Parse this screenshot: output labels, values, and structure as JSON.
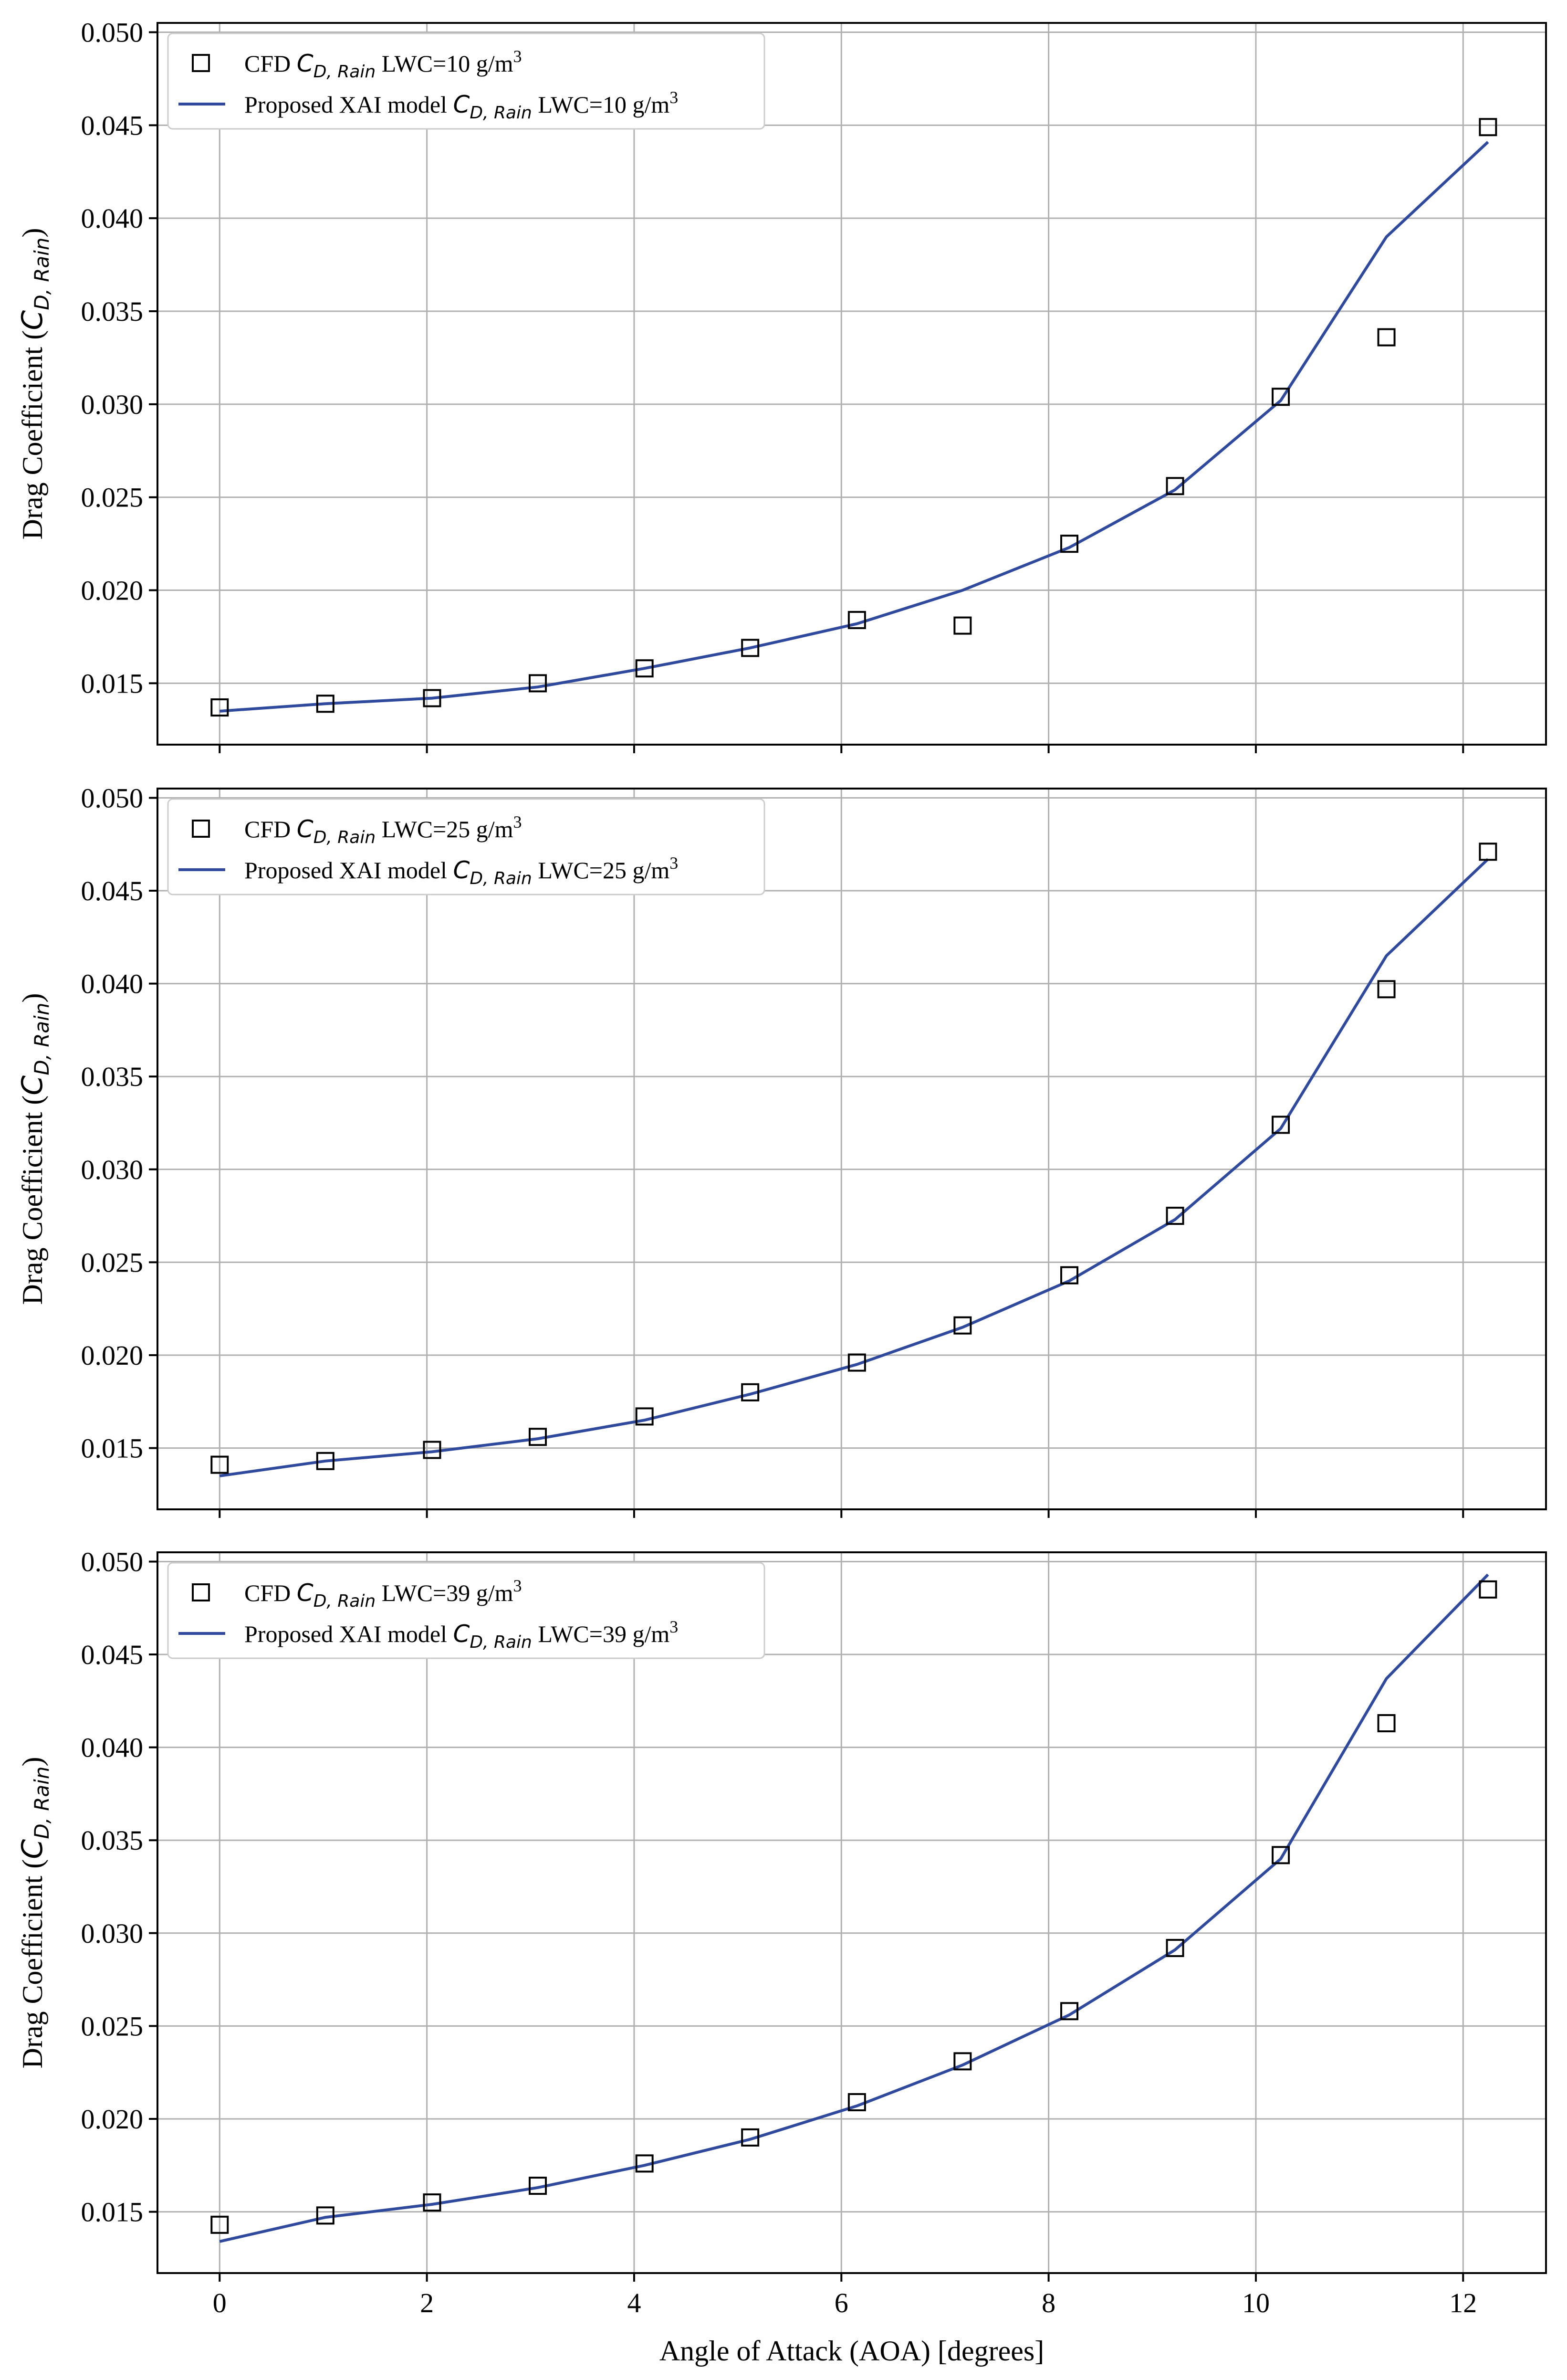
{
  "chart_data": [
    {
      "type": "line",
      "xlabel": "Angle of Attack (AOA) [degrees]",
      "ylabel": "Drag Coefficient (C_D,Rain)",
      "xlim": [
        -0.6,
        12.8
      ],
      "ylim": [
        0.0117,
        0.0505
      ],
      "xticks": [
        0,
        2,
        4,
        6,
        8,
        10,
        12
      ],
      "xticklabels_visible": false,
      "yticks": [
        0.015,
        0.02,
        0.025,
        0.03,
        0.035,
        0.04,
        0.045,
        0.05
      ],
      "yticklabels": [
        "0.015",
        "0.020",
        "0.025",
        "0.030",
        "0.035",
        "0.040",
        "0.045",
        "0.050"
      ],
      "grid": true,
      "legend_position": "top-left",
      "series": [
        {
          "name": "CFD C_D,Rain LWC=10 g/m3",
          "kind": "marker",
          "marker": "square",
          "color": "#000000",
          "x": [
            0,
            1.02,
            2.05,
            3.07,
            4.1,
            5.12,
            6.15,
            7.17,
            8.2,
            9.22,
            10.24,
            11.26,
            12.24
          ],
          "y": [
            0.0137,
            0.0139,
            0.0142,
            0.015,
            0.0158,
            0.0169,
            0.0184,
            0.0181,
            0.0225,
            0.0256,
            0.0304,
            0.0336,
            0.0449
          ]
        },
        {
          "name": "Proposed XAI model C_D,Rain LWC=10 g/m3",
          "kind": "line",
          "color": "#2f4a9c",
          "x": [
            0,
            1.02,
            2.05,
            3.07,
            4.1,
            5.12,
            6.15,
            7.17,
            8.2,
            9.22,
            10.24,
            11.26,
            12.24
          ],
          "y": [
            0.0135,
            0.0139,
            0.0142,
            0.0148,
            0.0158,
            0.0169,
            0.0182,
            0.02,
            0.0223,
            0.0254,
            0.0302,
            0.039,
            0.0441
          ]
        }
      ]
    },
    {
      "type": "line",
      "xlabel": "Angle of Attack (AOA) [degrees]",
      "ylabel": "Drag Coefficient (C_D,Rain)",
      "xlim": [
        -0.6,
        12.8
      ],
      "ylim": [
        0.0117,
        0.0505
      ],
      "xticks": [
        0,
        2,
        4,
        6,
        8,
        10,
        12
      ],
      "xticklabels_visible": false,
      "yticks": [
        0.015,
        0.02,
        0.025,
        0.03,
        0.035,
        0.04,
        0.045,
        0.05
      ],
      "yticklabels": [
        "0.015",
        "0.020",
        "0.025",
        "0.030",
        "0.035",
        "0.040",
        "0.045",
        "0.050"
      ],
      "grid": true,
      "legend_position": "top-left",
      "series": [
        {
          "name": "CFD C_D,Rain LWC=25 g/m3",
          "kind": "marker",
          "marker": "square",
          "color": "#000000",
          "x": [
            0,
            1.02,
            2.05,
            3.07,
            4.1,
            5.12,
            6.15,
            7.17,
            8.2,
            9.22,
            10.24,
            11.26,
            12.24
          ],
          "y": [
            0.0141,
            0.0143,
            0.0149,
            0.0156,
            0.0167,
            0.018,
            0.0196,
            0.0216,
            0.0243,
            0.0275,
            0.0324,
            0.0397,
            0.0471
          ]
        },
        {
          "name": "Proposed XAI model C_D,Rain LWC=25 g/m3",
          "kind": "line",
          "color": "#2f4a9c",
          "x": [
            0,
            1.02,
            2.05,
            3.07,
            4.1,
            5.12,
            6.15,
            7.17,
            8.2,
            9.22,
            10.24,
            11.26,
            12.24
          ],
          "y": [
            0.0135,
            0.0143,
            0.0148,
            0.0155,
            0.0165,
            0.0179,
            0.0195,
            0.0215,
            0.024,
            0.0273,
            0.0322,
            0.0415,
            0.0467
          ]
        }
      ]
    },
    {
      "type": "line",
      "xlabel": "Angle of Attack (AOA) [degrees]",
      "ylabel": "Drag Coefficient (C_D,Rain)",
      "xlim": [
        -0.6,
        12.8
      ],
      "ylim": [
        0.0117,
        0.0505
      ],
      "xticks": [
        0,
        2,
        4,
        6,
        8,
        10,
        12
      ],
      "xticklabels": [
        "0",
        "2",
        "4",
        "6",
        "8",
        "10",
        "12"
      ],
      "xticklabels_visible": true,
      "yticks": [
        0.015,
        0.02,
        0.025,
        0.03,
        0.035,
        0.04,
        0.045,
        0.05
      ],
      "yticklabels": [
        "0.015",
        "0.020",
        "0.025",
        "0.030",
        "0.035",
        "0.040",
        "0.045",
        "0.050"
      ],
      "grid": true,
      "legend_position": "top-left",
      "series": [
        {
          "name": "CFD C_D,Rain LWC=39 g/m3",
          "kind": "marker",
          "marker": "square",
          "color": "#000000",
          "x": [
            0,
            1.02,
            2.05,
            3.07,
            4.1,
            5.12,
            6.15,
            7.17,
            8.2,
            9.22,
            10.24,
            11.26,
            12.24
          ],
          "y": [
            0.0143,
            0.0148,
            0.0155,
            0.0164,
            0.0176,
            0.019,
            0.0209,
            0.0231,
            0.0258,
            0.0292,
            0.0342,
            0.0413,
            0.0485
          ]
        },
        {
          "name": "Proposed XAI model C_D,Rain LWC=39 g/m3",
          "kind": "line",
          "color": "#2f4a9c",
          "x": [
            0,
            1.02,
            2.05,
            3.07,
            4.1,
            5.12,
            6.15,
            7.17,
            8.2,
            9.22,
            10.24,
            11.26,
            12.24
          ],
          "y": [
            0.0134,
            0.0147,
            0.0154,
            0.0163,
            0.0175,
            0.0189,
            0.0207,
            0.0229,
            0.0256,
            0.0291,
            0.034,
            0.0437,
            0.0493
          ]
        }
      ]
    }
  ],
  "legend_text": [
    {
      "cfd_prefix": "CFD ",
      "model_prefix": "Proposed XAI model ",
      "c_main": "C",
      "c_sub": "D, Rain",
      "lwc_text": " LWC=10 g/m",
      "sup": "3"
    },
    {
      "cfd_prefix": "CFD ",
      "model_prefix": "Proposed XAI model ",
      "c_main": "C",
      "c_sub": "D, Rain",
      "lwc_text": " LWC=25 g/m",
      "sup": "3"
    },
    {
      "cfd_prefix": "CFD ",
      "model_prefix": "Proposed XAI model ",
      "c_main": "C",
      "c_sub": "D, Rain",
      "lwc_text": " LWC=39 g/m",
      "sup": "3"
    }
  ],
  "ylabel_parts": {
    "prefix": "Drag Coefficient (",
    "c_main": "C",
    "c_sub": "D, Rain",
    "suffix": ")"
  },
  "colors": {
    "line": "#2f4a9c",
    "marker": "#000000",
    "grid": "#b0b0b0"
  }
}
